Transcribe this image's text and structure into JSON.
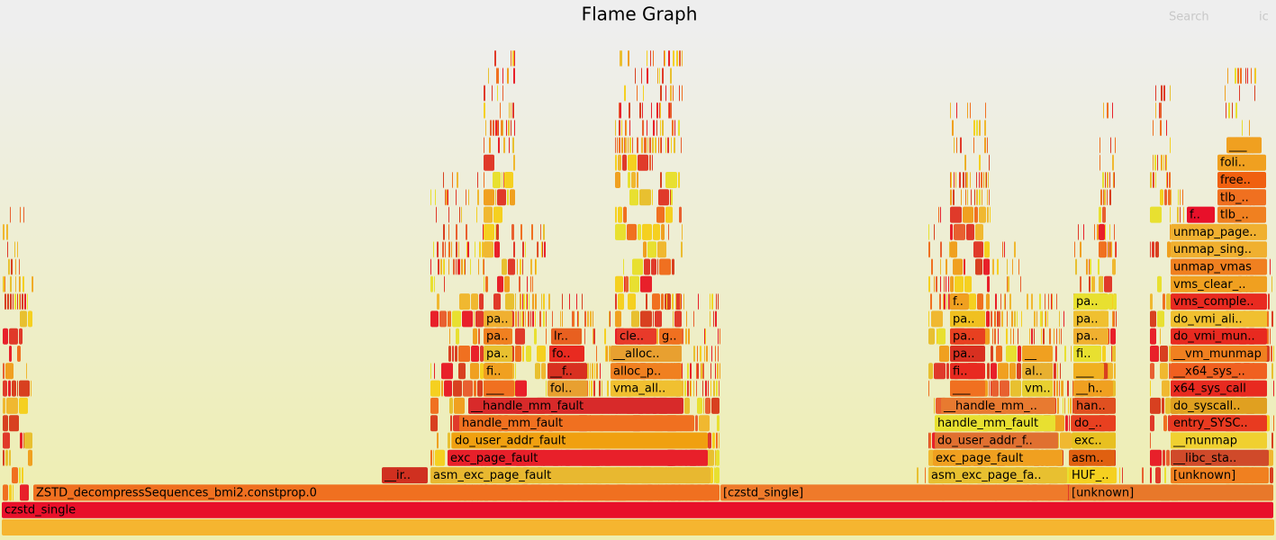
{
  "header": {
    "title": "Flame Graph",
    "search": "Search",
    "ic": "ic"
  },
  "frames": [
    {
      "label": "czstd_single"
    },
    {
      "label": "ZSTD_decompressSequences_bmi2.constprop.0"
    },
    {
      "label": "[czstd_single]"
    },
    {
      "label": "[unknown]"
    },
    {
      "label": "__ir.."
    },
    {
      "label": "asm_exc_page_fault"
    },
    {
      "label": "asm_exc_page_fa.."
    },
    {
      "label": "HUF_.."
    },
    {
      "label": "[unknown]"
    },
    {
      "label": "exc_page_fault"
    },
    {
      "label": "exc_page_fault"
    },
    {
      "label": "asm.."
    },
    {
      "label": "__libc_sta.."
    },
    {
      "label": "do_user_addr_fault"
    },
    {
      "label": "do_user_addr_f.."
    },
    {
      "label": "exc.."
    },
    {
      "label": "__munmap"
    },
    {
      "label": "handle_mm_fault"
    },
    {
      "label": "handle_mm_fault"
    },
    {
      "label": "do_.."
    },
    {
      "label": "entry_SYSC.."
    },
    {
      "label": "__handle_mm_fault"
    },
    {
      "label": "__handle_mm_.."
    },
    {
      "label": "han.."
    },
    {
      "label": "do_syscall.."
    },
    {
      "label": "___"
    },
    {
      "label": "fol.."
    },
    {
      "label": "vma_all.."
    },
    {
      "label": "___"
    },
    {
      "label": "vm.."
    },
    {
      "label": "__h.."
    },
    {
      "label": "x64_sys_call"
    },
    {
      "label": "fi.."
    },
    {
      "label": "__f.."
    },
    {
      "label": "alloc_p.."
    },
    {
      "label": "fi.."
    },
    {
      "label": "al.."
    },
    {
      "label": "___"
    },
    {
      "label": "__x64_sys_.."
    },
    {
      "label": "pa.."
    },
    {
      "label": "fo.."
    },
    {
      "label": "__alloc.."
    },
    {
      "label": "pa.."
    },
    {
      "label": "__"
    },
    {
      "label": "fi.."
    },
    {
      "label": "__vm_munmap"
    },
    {
      "label": "pa.."
    },
    {
      "label": "lr.."
    },
    {
      "label": "cle.."
    },
    {
      "label": "g.."
    },
    {
      "label": "pa.."
    },
    {
      "label": "pa.."
    },
    {
      "label": "do_vmi_mun.."
    },
    {
      "label": "pa.."
    },
    {
      "label": "pa.."
    },
    {
      "label": "pa.."
    },
    {
      "label": "do_vmi_ali.."
    },
    {
      "label": "f.."
    },
    {
      "label": "pa.."
    },
    {
      "label": "vms_comple.."
    },
    {
      "label": "vms_clear_.."
    },
    {
      "label": "unmap_vmas"
    },
    {
      "label": "unmap_sing.."
    },
    {
      "label": "unmap_page.."
    },
    {
      "label": "f.."
    },
    {
      "label": "tlb_.."
    },
    {
      "label": "tlb_.."
    },
    {
      "label": "free.."
    },
    {
      "label": "foli.."
    },
    {
      "label": "___"
    }
  ]
}
